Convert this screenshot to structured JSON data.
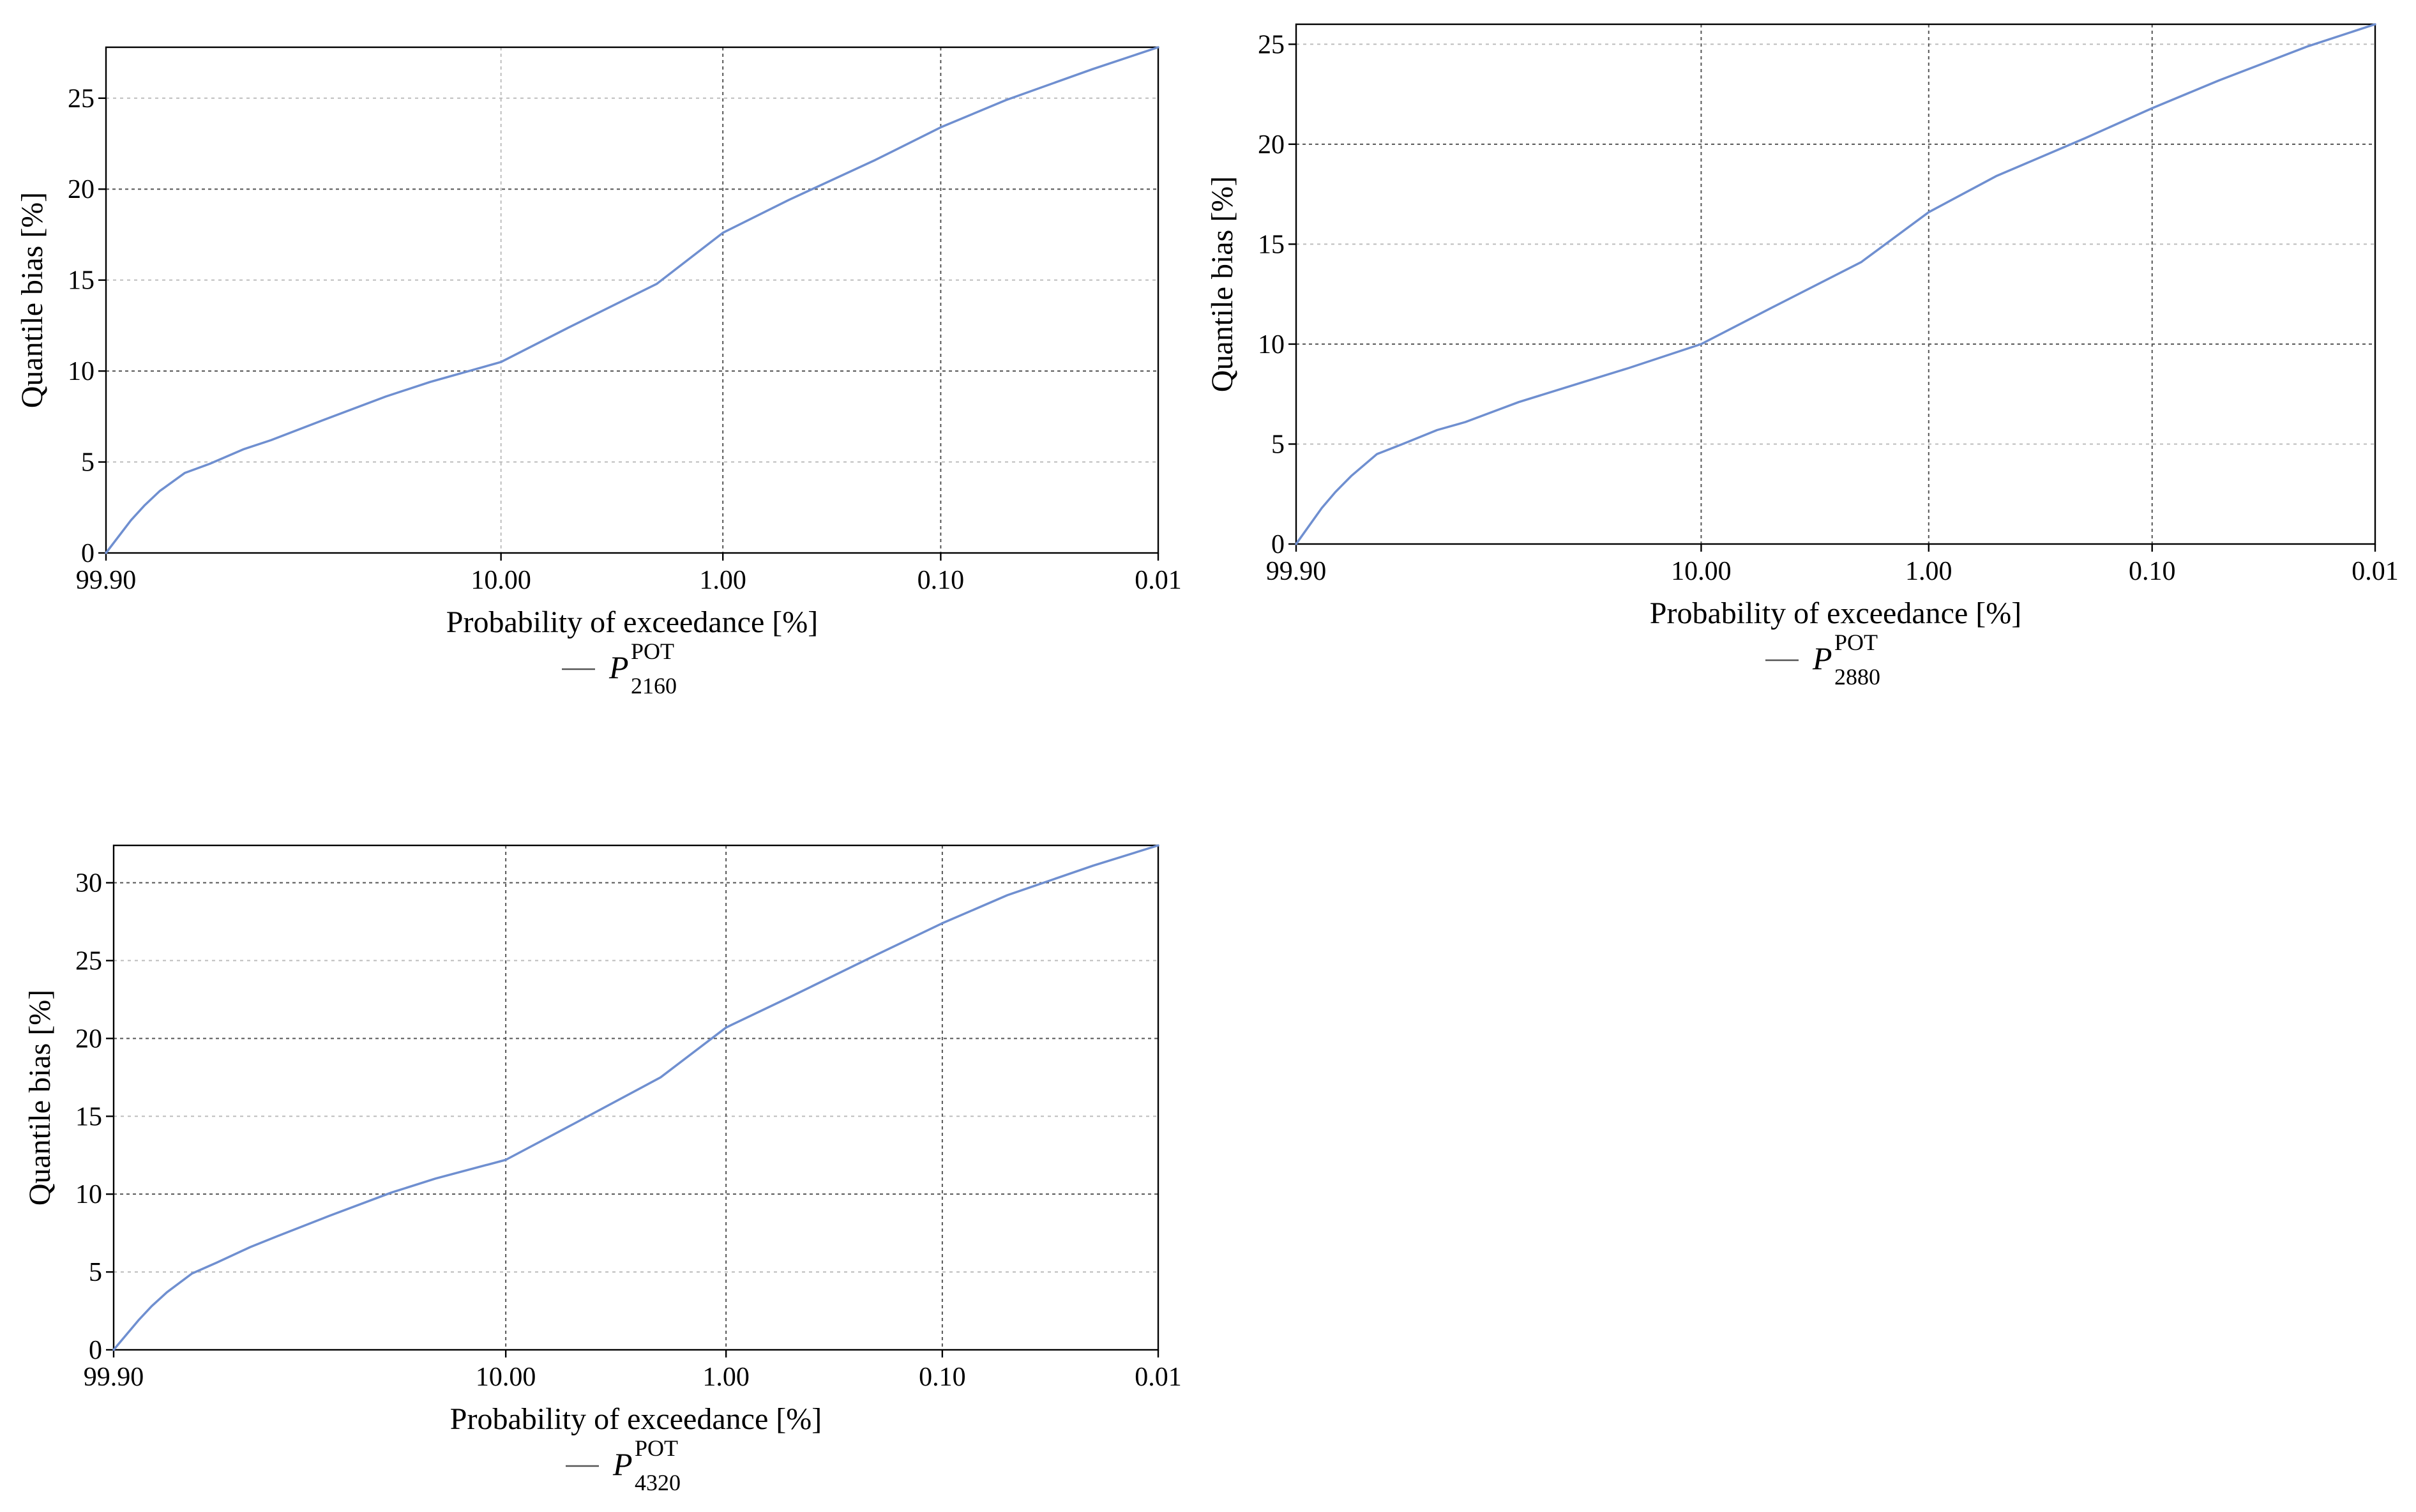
{
  "line_color": "#6f8fd0",
  "chart_data": [
    {
      "type": "line",
      "xlabel": "Probability of exceedance [%]",
      "ylabel": "Quantile bias [%]",
      "x_scale": "gumbel-probability",
      "x_ticks": [
        "99.90",
        "10.00",
        "1.00",
        "0.10",
        "0.01"
      ],
      "y_ticks": [
        "0",
        "5",
        "10",
        "15",
        "20",
        "25"
      ],
      "ylim": [
        0,
        27.8
      ],
      "grid": true,
      "legend_position": "below",
      "series": [
        {
          "name": "P",
          "name_sup": "POT",
          "name_sub": "2160",
          "x": [
            99.9,
            99.5,
            99,
            98,
            95,
            90,
            80,
            70,
            50,
            30,
            20,
            10,
            5,
            2,
            1,
            0.5,
            0.2,
            0.1,
            0.05,
            0.02,
            0.01
          ],
          "y": [
            0,
            1.8,
            2.6,
            3.4,
            4.4,
            4.9,
            5.7,
            6.2,
            7.3,
            8.6,
            9.4,
            10.5,
            12.4,
            14.8,
            17.6,
            19.4,
            21.6,
            23.4,
            24.9,
            26.6,
            27.8
          ]
        }
      ]
    },
    {
      "type": "line",
      "xlabel": "Probability of exceedance [%]",
      "ylabel": "Quantile bias [%]",
      "x_scale": "gumbel-probability",
      "x_ticks": [
        "99.90",
        "10.00",
        "1.00",
        "0.10",
        "0.01"
      ],
      "y_ticks": [
        "0",
        "5",
        "10",
        "15",
        "20",
        "25"
      ],
      "ylim": [
        0,
        26
      ],
      "grid": true,
      "legend_position": "below",
      "series": [
        {
          "name": "P",
          "name_sup": "POT",
          "name_sub": "2880",
          "x": [
            99.9,
            99.5,
            99,
            98,
            95,
            90,
            80,
            70,
            50,
            30,
            20,
            10,
            5,
            2,
            1,
            0.5,
            0.2,
            0.1,
            0.05,
            0.02,
            0.01
          ],
          "y": [
            0,
            1.8,
            2.6,
            3.4,
            4.5,
            5,
            5.7,
            6.1,
            7.1,
            8.1,
            8.8,
            10,
            11.8,
            14.1,
            16.6,
            18.4,
            20.3,
            21.8,
            23.2,
            24.9,
            26
          ]
        }
      ]
    },
    {
      "type": "line",
      "xlabel": "Probability of exceedance [%]",
      "ylabel": "Quantile bias [%]",
      "x_scale": "gumbel-probability",
      "x_ticks": [
        "99.90",
        "10.00",
        "1.00",
        "0.10",
        "0.01"
      ],
      "y_ticks": [
        "0",
        "5",
        "10",
        "15",
        "20",
        "25",
        "30"
      ],
      "ylim": [
        0,
        32.4
      ],
      "grid": true,
      "legend_position": "below",
      "series": [
        {
          "name": "P",
          "name_sup": "POT",
          "name_sub": "4320",
          "x": [
            99.9,
            99.5,
            99,
            98,
            95,
            90,
            80,
            70,
            50,
            30,
            20,
            10,
            5,
            2,
            1,
            0.5,
            0.2,
            0.1,
            0.05,
            0.02,
            0.01
          ],
          "y": [
            0,
            1.9,
            2.8,
            3.7,
            4.9,
            5.6,
            6.6,
            7.3,
            8.6,
            10.1,
            11,
            12.2,
            14.5,
            17.5,
            20.7,
            22.7,
            25.4,
            27.4,
            29.2,
            31.1,
            32.4
          ]
        }
      ]
    }
  ]
}
